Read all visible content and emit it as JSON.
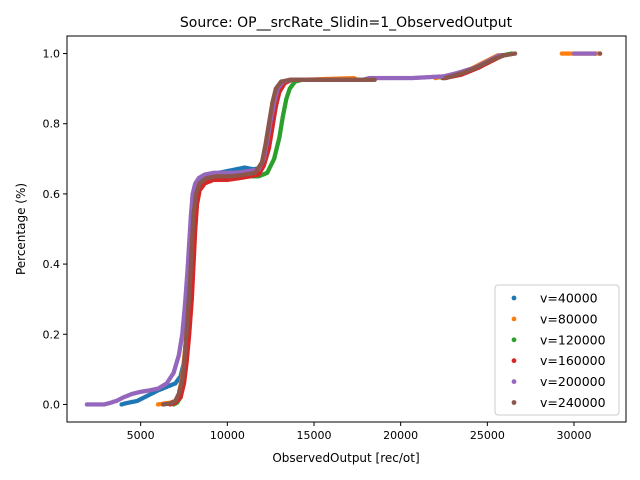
{
  "chart_data": {
    "type": "scatter",
    "title": "Source: OP__srcRate_Slidin=1_ObservedOutput",
    "xlabel": "ObservedOutput [rec/ot]",
    "ylabel": "Percentage (%)",
    "xlim": [
      750,
      33000
    ],
    "ylim": [
      -0.05,
      1.05
    ],
    "xticks": [
      5000,
      10000,
      15000,
      20000,
      25000,
      30000
    ],
    "yticks": [
      0.0,
      0.2,
      0.4,
      0.6,
      0.8,
      1.0
    ],
    "grid": false,
    "legend_position": "lower right",
    "series": [
      {
        "name": "v=40000",
        "color": "#1f77b4",
        "points": [
          [
            3900,
            0.0
          ],
          [
            4100,
            0.003
          ],
          [
            4300,
            0.005
          ],
          [
            4800,
            0.01
          ],
          [
            5200,
            0.02
          ],
          [
            5600,
            0.03
          ],
          [
            6000,
            0.04
          ],
          [
            6500,
            0.05
          ],
          [
            7000,
            0.06
          ],
          [
            7300,
            0.08
          ],
          [
            7500,
            0.12
          ],
          [
            7650,
            0.2
          ],
          [
            7800,
            0.3
          ],
          [
            7900,
            0.4
          ],
          [
            8000,
            0.5
          ],
          [
            8100,
            0.6
          ],
          [
            8250,
            0.63
          ],
          [
            8500,
            0.645
          ],
          [
            9000,
            0.655
          ],
          [
            9500,
            0.66
          ],
          [
            10000,
            0.665
          ],
          [
            10500,
            0.67
          ],
          [
            11000,
            0.675
          ],
          [
            11500,
            0.67
          ],
          [
            12000,
            0.675
          ],
          [
            12200,
            0.7
          ],
          [
            12400,
            0.75
          ],
          [
            12600,
            0.8
          ],
          [
            12800,
            0.85
          ],
          [
            13000,
            0.9
          ],
          [
            13300,
            0.92
          ],
          [
            13800,
            0.925
          ],
          [
            14500,
            0.925
          ],
          [
            17300,
            0.925
          ],
          [
            22500,
            0.93
          ],
          [
            23500,
            0.94
          ],
          [
            24500,
            0.96
          ],
          [
            25200,
            0.98
          ],
          [
            25800,
            0.995
          ],
          [
            31200,
            1.0
          ]
        ]
      },
      {
        "name": "v=80000",
        "color": "#ff7f0e",
        "points": [
          [
            6000,
            0.0
          ],
          [
            6300,
            0.002
          ],
          [
            6700,
            0.005
          ],
          [
            7000,
            0.01
          ],
          [
            7200,
            0.03
          ],
          [
            7400,
            0.08
          ],
          [
            7550,
            0.15
          ],
          [
            7700,
            0.25
          ],
          [
            7850,
            0.35
          ],
          [
            7950,
            0.45
          ],
          [
            8050,
            0.55
          ],
          [
            8200,
            0.6
          ],
          [
            8400,
            0.63
          ],
          [
            8700,
            0.64
          ],
          [
            9200,
            0.645
          ],
          [
            9800,
            0.645
          ],
          [
            10500,
            0.65
          ],
          [
            11200,
            0.655
          ],
          [
            11800,
            0.66
          ],
          [
            12200,
            0.7
          ],
          [
            12500,
            0.77
          ],
          [
            12700,
            0.84
          ],
          [
            12900,
            0.89
          ],
          [
            13200,
            0.915
          ],
          [
            13600,
            0.925
          ],
          [
            14200,
            0.925
          ],
          [
            17300,
            0.93
          ],
          [
            17500,
            0.925
          ],
          [
            22000,
            0.93
          ],
          [
            23000,
            0.94
          ],
          [
            24000,
            0.955
          ],
          [
            25000,
            0.98
          ],
          [
            25600,
            0.995
          ],
          [
            29300,
            1.0
          ],
          [
            31400,
            1.0
          ]
        ]
      },
      {
        "name": "v=120000",
        "color": "#2ca02c",
        "points": [
          [
            6900,
            0.0
          ],
          [
            7100,
            0.005
          ],
          [
            7300,
            0.02
          ],
          [
            7450,
            0.06
          ],
          [
            7600,
            0.12
          ],
          [
            7750,
            0.22
          ],
          [
            7900,
            0.33
          ],
          [
            8000,
            0.43
          ],
          [
            8100,
            0.52
          ],
          [
            8200,
            0.58
          ],
          [
            8400,
            0.62
          ],
          [
            8700,
            0.635
          ],
          [
            9200,
            0.64
          ],
          [
            10000,
            0.645
          ],
          [
            11000,
            0.65
          ],
          [
            11800,
            0.65
          ],
          [
            12300,
            0.66
          ],
          [
            12700,
            0.7
          ],
          [
            13000,
            0.76
          ],
          [
            13200,
            0.82
          ],
          [
            13400,
            0.87
          ],
          [
            13600,
            0.9
          ],
          [
            13900,
            0.92
          ],
          [
            14300,
            0.925
          ],
          [
            15000,
            0.925
          ],
          [
            22400,
            0.93
          ],
          [
            23300,
            0.94
          ],
          [
            24300,
            0.96
          ],
          [
            25200,
            0.98
          ],
          [
            25900,
            0.995
          ],
          [
            26400,
            1.0
          ]
        ]
      },
      {
        "name": "v=160000",
        "color": "#d62728",
        "points": [
          [
            6700,
            0.0
          ],
          [
            7000,
            0.005
          ],
          [
            7300,
            0.02
          ],
          [
            7500,
            0.06
          ],
          [
            7650,
            0.12
          ],
          [
            7800,
            0.2
          ],
          [
            7950,
            0.3
          ],
          [
            8050,
            0.4
          ],
          [
            8150,
            0.5
          ],
          [
            8250,
            0.57
          ],
          [
            8400,
            0.61
          ],
          [
            8700,
            0.63
          ],
          [
            9200,
            0.64
          ],
          [
            10000,
            0.64
          ],
          [
            10700,
            0.645
          ],
          [
            11300,
            0.65
          ],
          [
            11800,
            0.655
          ],
          [
            12100,
            0.68
          ],
          [
            12400,
            0.73
          ],
          [
            12600,
            0.79
          ],
          [
            12800,
            0.85
          ],
          [
            13000,
            0.89
          ],
          [
            13300,
            0.915
          ],
          [
            13700,
            0.925
          ],
          [
            14200,
            0.925
          ],
          [
            17600,
            0.925
          ],
          [
            22500,
            0.93
          ],
          [
            23500,
            0.94
          ],
          [
            24500,
            0.96
          ],
          [
            25300,
            0.98
          ],
          [
            25900,
            0.995
          ],
          [
            31500,
            1.0
          ]
        ]
      },
      {
        "name": "v=200000",
        "color": "#9467bd",
        "points": [
          [
            1900,
            0.0
          ],
          [
            2200,
            0.0
          ],
          [
            2900,
            0.0
          ],
          [
            3200,
            0.004
          ],
          [
            3600,
            0.01
          ],
          [
            4000,
            0.02
          ],
          [
            4500,
            0.03
          ],
          [
            5000,
            0.036
          ],
          [
            5500,
            0.04
          ],
          [
            6000,
            0.045
          ],
          [
            6500,
            0.06
          ],
          [
            6900,
            0.09
          ],
          [
            7200,
            0.14
          ],
          [
            7400,
            0.2
          ],
          [
            7550,
            0.28
          ],
          [
            7700,
            0.38
          ],
          [
            7800,
            0.46
          ],
          [
            7900,
            0.54
          ],
          [
            8000,
            0.6
          ],
          [
            8150,
            0.63
          ],
          [
            8350,
            0.645
          ],
          [
            8700,
            0.655
          ],
          [
            9200,
            0.66
          ],
          [
            9700,
            0.66
          ],
          [
            10500,
            0.66
          ],
          [
            11200,
            0.665
          ],
          [
            11800,
            0.67
          ],
          [
            12100,
            0.7
          ],
          [
            12300,
            0.75
          ],
          [
            12500,
            0.81
          ],
          [
            12700,
            0.86
          ],
          [
            12900,
            0.9
          ],
          [
            13200,
            0.92
          ],
          [
            13700,
            0.925
          ],
          [
            14400,
            0.925
          ],
          [
            17800,
            0.925
          ],
          [
            18200,
            0.93
          ],
          [
            19600,
            0.93
          ],
          [
            20300,
            0.93
          ],
          [
            20600,
            0.93
          ],
          [
            22500,
            0.935
          ],
          [
            23300,
            0.945
          ],
          [
            24300,
            0.96
          ],
          [
            25100,
            0.98
          ],
          [
            25700,
            0.995
          ],
          [
            30000,
            1.0
          ],
          [
            30600,
            1.0
          ],
          [
            31200,
            1.0
          ]
        ]
      },
      {
        "name": "v=240000",
        "color": "#8c564b",
        "points": [
          [
            6300,
            0.0
          ],
          [
            6700,
            0.003
          ],
          [
            7000,
            0.01
          ],
          [
            7200,
            0.03
          ],
          [
            7400,
            0.07
          ],
          [
            7550,
            0.14
          ],
          [
            7700,
            0.24
          ],
          [
            7850,
            0.35
          ],
          [
            7950,
            0.45
          ],
          [
            8050,
            0.54
          ],
          [
            8200,
            0.6
          ],
          [
            8400,
            0.63
          ],
          [
            8800,
            0.645
          ],
          [
            9400,
            0.65
          ],
          [
            10200,
            0.65
          ],
          [
            11000,
            0.655
          ],
          [
            11600,
            0.66
          ],
          [
            12000,
            0.69
          ],
          [
            12200,
            0.74
          ],
          [
            12400,
            0.8
          ],
          [
            12600,
            0.86
          ],
          [
            12800,
            0.9
          ],
          [
            13100,
            0.92
          ],
          [
            13600,
            0.925
          ],
          [
            14300,
            0.925
          ],
          [
            15200,
            0.925
          ],
          [
            17300,
            0.925
          ],
          [
            18500,
            0.925
          ],
          [
            22600,
            0.93
          ],
          [
            23600,
            0.945
          ],
          [
            24600,
            0.965
          ],
          [
            25400,
            0.985
          ],
          [
            26000,
            0.995
          ],
          [
            26600,
            1.0
          ],
          [
            31500,
            1.0
          ]
        ]
      }
    ]
  }
}
